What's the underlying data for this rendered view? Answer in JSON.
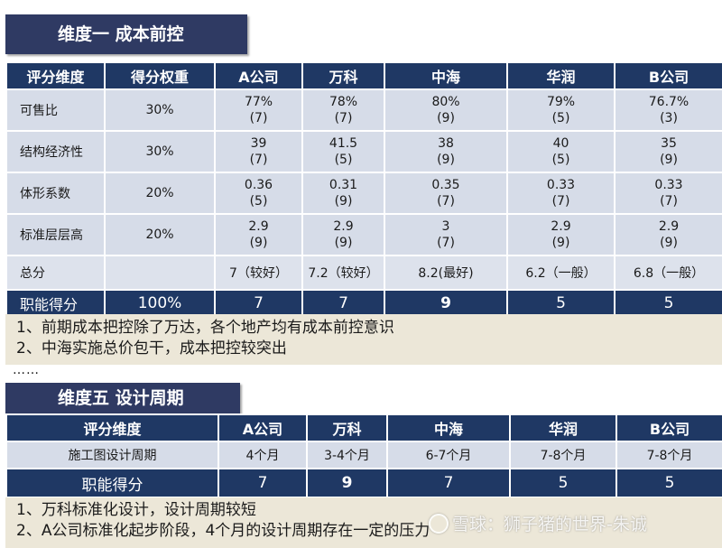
{
  "section1": {
    "title": "维度一 成本前控",
    "headers": [
      "评分维度",
      "得分权重",
      "A公司",
      "万科",
      "中海",
      "华润",
      "B公司"
    ],
    "rows": [
      {
        "label": "可售比",
        "weight": "30%",
        "cells": [
          [
            "77%",
            "(7)"
          ],
          [
            "78%",
            "(7)"
          ],
          [
            "80%",
            "(9)"
          ],
          [
            "79%",
            "(5)"
          ],
          [
            "76.7%",
            "(3)"
          ]
        ]
      },
      {
        "label": "结构经济性",
        "weight": "30%",
        "cells": [
          [
            "39",
            "(7)"
          ],
          [
            "41.5",
            "(5)"
          ],
          [
            "38",
            "(9)"
          ],
          [
            "40",
            "(5)"
          ],
          [
            "35",
            "(9)"
          ]
        ]
      },
      {
        "label": "体形系数",
        "weight": "20%",
        "cells": [
          [
            "0.36",
            "(5)"
          ],
          [
            "0.31",
            "(9)"
          ],
          [
            "0.35",
            "(7)"
          ],
          [
            "0.33",
            "(7)"
          ],
          [
            "0.33",
            "(7)"
          ]
        ]
      },
      {
        "label": "标准层层高",
        "weight": "20%",
        "cells": [
          [
            "2.9",
            "(9)"
          ],
          [
            "2.9",
            "(9)"
          ],
          [
            "3",
            "(7)"
          ],
          [
            "2.9",
            "(9)"
          ],
          [
            "2.9",
            "(9)"
          ]
        ]
      }
    ],
    "total": {
      "label": "总分",
      "weight": "",
      "cells": [
        "7（较好）",
        "7.2（较好）",
        "8.2(最好)",
        "6.2（一般）",
        "6.8（一般）"
      ]
    },
    "score": {
      "label": "职能得分",
      "weight": "100%",
      "cells": [
        "7",
        "7",
        "9",
        "5",
        "5"
      ]
    },
    "notes": [
      "1、前期成本把控除了万达，各个地产均有成本前控意识",
      "2、中海实施总价包干，成本把控较突出"
    ]
  },
  "ellipsis": "……",
  "section5": {
    "title": "维度五 设计周期",
    "headers": [
      "评分维度",
      "A公司",
      "万科",
      "中海",
      "华润",
      "B公司"
    ],
    "row": {
      "label": "施工图设计周期",
      "cells": [
        "4个月",
        "3-4个月",
        "6-7个月",
        "7-8个月",
        "7-8个月"
      ]
    },
    "score": {
      "label": "职能得分",
      "cells": [
        "7",
        "9",
        "7",
        "5",
        "5"
      ]
    },
    "notes": [
      "1、万科标准化设计，设计周期较短",
      "2、A公司标准化起步阶段，4个月的设计周期存在一定的压力"
    ]
  },
  "watermark": "雪球：狮子猪的世界-朱诚",
  "colors": {
    "header": "#1f3864",
    "banner": "#2f3a63",
    "cell": "#d6dce8",
    "note": "#ece7d8",
    "highlight": "#e00000"
  }
}
